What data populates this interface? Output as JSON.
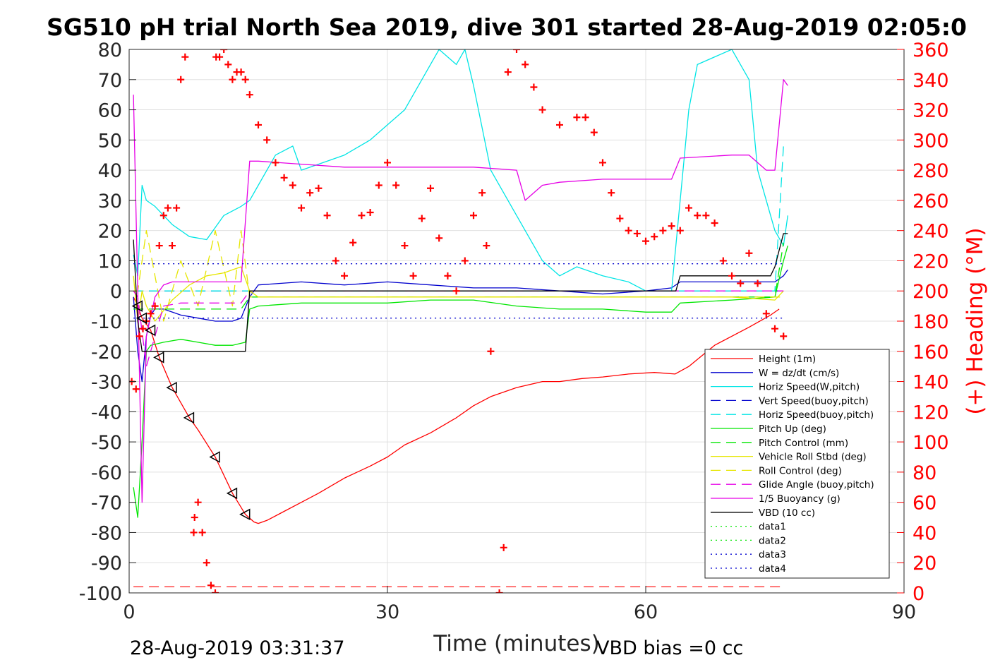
{
  "chart_data": {
    "type": "line",
    "title": "SG510 pH trial North Sea 2019, dive 301 started 28-Aug-2019 02:05:0",
    "xlabel": "Time (minutes)",
    "ylabel": "",
    "y2label": "(+) Heading (°M)",
    "xlim": [
      0,
      90
    ],
    "ylim": [
      -100,
      80
    ],
    "y2lim": [
      0,
      360
    ],
    "x_ticks": [
      "0",
      "30",
      "60",
      "90"
    ],
    "y_ticks": [
      "80",
      "70",
      "60",
      "50",
      "40",
      "30",
      "20",
      "10",
      "0",
      "-10",
      "-20",
      "-30",
      "-40",
      "-50",
      "-60",
      "-70",
      "-80",
      "-90",
      "-100"
    ],
    "y2_ticks": [
      "360",
      "340",
      "320",
      "300",
      "280",
      "260",
      "240",
      "220",
      "200",
      "180",
      "160",
      "140",
      "120",
      "100",
      "80",
      "60",
      "40",
      "20",
      "0"
    ],
    "grid": true,
    "legend_position": "lower-right",
    "footer_left": "28-Aug-2019 03:31:37",
    "footer_right": "VBD bias =0 cc",
    "series": [
      {
        "name": "Height (1m)",
        "color": "#ff0000",
        "style": "solid",
        "x": [
          0.5,
          1.0,
          1.5,
          2.5,
          3.5,
          5,
          7,
          8,
          10,
          12,
          13.5,
          14.5,
          15,
          16,
          18,
          20,
          22,
          25,
          28,
          30,
          32,
          35,
          38,
          40,
          42,
          45,
          48,
          50,
          52.6,
          55,
          58,
          61,
          63.4,
          65,
          68,
          72,
          74.5,
          75.5
        ],
        "y": [
          -2,
          -5,
          -9,
          -13,
          -22,
          -32,
          -42,
          -46,
          -55,
          -67,
          -74,
          -76.5,
          -77,
          -76,
          -73,
          -70,
          -67,
          -62,
          -58,
          -55,
          -51,
          -47,
          -42,
          -38,
          -35,
          -32,
          -30,
          -30,
          -29,
          -28.5,
          -27.5,
          -27,
          -27.5,
          -25,
          -18,
          -12,
          -8,
          -6
        ]
      },
      {
        "name": "W = dz/dt (cm/s)",
        "color": "#0000cd",
        "style": "solid",
        "x": [
          0.5,
          1,
          1.5,
          2,
          2.5,
          3,
          4,
          6,
          8,
          10,
          12,
          13,
          14,
          15,
          20,
          25,
          30,
          35,
          40,
          45,
          50,
          55,
          60,
          63,
          64,
          70,
          75,
          76,
          76.5
        ],
        "y": [
          -2,
          -20,
          -30,
          -15,
          -8,
          -6,
          -6,
          -8,
          -9,
          -10,
          -10,
          -9,
          -2,
          2,
          3,
          2,
          3,
          2,
          1,
          1,
          0,
          -1,
          0,
          1,
          3,
          3,
          3,
          5,
          7
        ]
      },
      {
        "name": "Horiz Speed(W,pitch)",
        "color": "#00e5e5",
        "style": "solid",
        "x": [
          0.5,
          1,
          1.5,
          2,
          3,
          5,
          7,
          9,
          11,
          13,
          14,
          15,
          17,
          19,
          20,
          22,
          25,
          28,
          30,
          32,
          34,
          36,
          38,
          39,
          40,
          42,
          45,
          48,
          50,
          52,
          55,
          58,
          60,
          63,
          64,
          65,
          66,
          70,
          72,
          73,
          75,
          76,
          76.5
        ],
        "y": [
          12,
          5,
          35,
          30,
          28,
          22,
          18,
          17,
          25,
          28,
          30,
          35,
          45,
          48,
          40,
          42,
          45,
          50,
          55,
          60,
          70,
          80,
          75,
          80,
          68,
          40,
          25,
          10,
          5,
          8,
          5,
          3,
          0,
          0,
          30,
          60,
          75,
          80,
          70,
          40,
          20,
          15,
          25
        ]
      },
      {
        "name": "Vert Speed(buoy,pitch)",
        "color": "#0000cd",
        "style": "dashed",
        "x": [
          0.5,
          1,
          2,
          5,
          10,
          13,
          14,
          20,
          30,
          40,
          50,
          60,
          70,
          76
        ],
        "y": [
          0,
          0,
          0,
          0,
          0,
          0,
          0,
          0,
          0,
          0,
          0,
          0,
          0,
          0
        ]
      },
      {
        "name": "Horiz Speed(buoy,pitch)",
        "color": "#00e5e5",
        "style": "dashed",
        "x": [
          0.5,
          1,
          2,
          5,
          10,
          13,
          14,
          20,
          30,
          40,
          50,
          60,
          70,
          75,
          76
        ],
        "y": [
          0,
          0,
          0,
          0,
          0,
          0,
          0,
          0,
          0,
          0,
          0,
          0,
          0,
          0,
          48
        ]
      },
      {
        "name": "Pitch Up (deg)",
        "color": "#00e600",
        "style": "solid",
        "x": [
          0.5,
          1,
          1.5,
          2,
          2.5,
          4,
          6,
          8,
          10,
          12,
          13.5,
          14,
          15,
          20,
          25,
          30,
          35,
          40,
          45,
          50,
          55,
          60,
          63,
          64,
          70,
          75,
          76,
          76.5
        ],
        "y": [
          -65,
          -75,
          -50,
          -20,
          -18,
          -17,
          -16,
          -17,
          -18,
          -18,
          -17,
          -6,
          -5,
          -4,
          -4,
          -4,
          -3,
          -3,
          -5,
          -6,
          -6,
          -7,
          -7,
          -4,
          -3,
          -2,
          10,
          15
        ]
      },
      {
        "name": "Pitch Control (mm)",
        "color": "#00e600",
        "style": "dashed",
        "x": [
          0.5,
          1,
          2,
          5,
          10,
          13,
          14,
          20,
          30,
          40,
          50,
          60,
          70,
          75,
          76
        ],
        "y": [
          -6,
          -6,
          -6,
          -6,
          -6,
          -6,
          -2,
          -2,
          -2,
          -2,
          -2,
          -2,
          -2,
          -2,
          16
        ]
      },
      {
        "name": "Vehicle Roll Stbd (deg)",
        "color": "#e6e600",
        "style": "solid",
        "x": [
          0.5,
          1,
          1.5,
          2,
          3,
          5,
          7,
          9,
          11,
          12,
          13,
          14,
          15,
          20,
          30,
          40,
          50,
          60,
          70,
          75,
          76
        ],
        "y": [
          5,
          -10,
          0,
          -5,
          -10,
          -3,
          2,
          5,
          6,
          7,
          8,
          0,
          -2,
          -2,
          -2,
          -2,
          -2,
          -2,
          -2,
          -3,
          0
        ]
      },
      {
        "name": "Roll Control (deg)",
        "color": "#e6e600",
        "style": "dashed",
        "x": [
          0.5,
          1,
          2,
          4,
          6,
          8,
          10,
          12,
          13,
          14,
          20,
          30,
          40,
          50,
          60,
          70,
          76
        ],
        "y": [
          0,
          0,
          20,
          -10,
          10,
          -5,
          20,
          -5,
          20,
          -2,
          -2,
          -2,
          -2,
          -2,
          -2,
          -2,
          -2
        ]
      },
      {
        "name": "Glide Angle (buoy,pitch)",
        "color": "#e600e6",
        "style": "dashed",
        "x": [
          0.5,
          1,
          2,
          4,
          6,
          10,
          13,
          14,
          20,
          30,
          40,
          50,
          60,
          70,
          76
        ],
        "y": [
          0,
          -2,
          -25,
          -5,
          -4,
          -4,
          -4,
          0,
          0,
          0,
          0,
          0,
          0,
          0,
          0
        ]
      },
      {
        "name": "1/5 Buoyancy (g)",
        "color": "#e600e6",
        "style": "solid",
        "x": [
          0.5,
          1,
          1.5,
          2,
          3,
          4,
          5,
          6,
          8,
          10,
          12,
          13,
          14,
          15,
          20,
          25,
          30,
          35,
          40,
          45,
          46,
          48,
          50,
          55,
          60,
          63,
          64,
          70,
          72,
          74,
          75,
          76,
          76.5
        ],
        "y": [
          65,
          0,
          -70,
          -15,
          -2,
          2,
          3,
          3,
          3,
          3,
          3,
          3,
          43,
          43,
          42,
          41,
          41,
          41,
          41,
          40,
          30,
          35,
          36,
          37,
          37,
          37,
          44,
          45,
          45,
          40,
          40,
          70,
          68
        ]
      },
      {
        "name": "VBD (10 cc)",
        "color": "#000000",
        "style": "solid",
        "x": [
          0.5,
          1,
          1.5,
          2,
          5,
          10,
          13.5,
          14,
          20,
          30,
          40,
          50,
          60,
          63.5,
          64,
          70,
          74.5,
          75,
          76,
          76.5
        ],
        "y": [
          17,
          -10,
          -20,
          -20,
          -20,
          -20,
          -20,
          0,
          0,
          0,
          0,
          0,
          0,
          0,
          5,
          5,
          5,
          8,
          19,
          19
        ]
      },
      {
        "name": "data1",
        "color": "#00e600",
        "style": "dotted",
        "x": [],
        "y": []
      },
      {
        "name": "data2",
        "color": "#00e600",
        "style": "dotted",
        "x": [],
        "y": []
      },
      {
        "name": "data3",
        "color": "#0000cd",
        "style": "dotted",
        "x": [
          0.5,
          76
        ],
        "y": [
          9,
          9
        ]
      },
      {
        "name": "data4",
        "color": "#0000cd",
        "style": "dotted",
        "x": [
          0.5,
          76
        ],
        "y": [
          -9,
          -9
        ]
      }
    ],
    "heading_series": {
      "marker": "+",
      "color": "#ff0000",
      "axis": "right",
      "x": [
        0.3,
        0.8,
        1.2,
        1.6,
        2.0,
        2.5,
        3.0,
        3.5,
        4.0,
        4.5,
        5.0,
        5.5,
        6.0,
        6.5,
        7.5,
        7.6,
        8.0,
        8.5,
        9.0,
        9.5,
        10.0,
        10.1,
        10.5,
        11.0,
        11.5,
        12.0,
        12.5,
        13.0,
        13.5,
        14.0,
        15.0,
        16.0,
        17.0,
        18.0,
        19.0,
        20.0,
        21.0,
        22.0,
        23.0,
        24.0,
        25.0,
        26.0,
        27.0,
        28.0,
        29.0,
        30.0,
        31.0,
        32.0,
        33.0,
        34.0,
        35.0,
        36.0,
        37.0,
        38.0,
        39.0,
        40.0,
        41.0,
        41.5,
        42.0,
        43.0,
        43.5,
        44.0,
        45.0,
        46.0,
        47.0,
        48.0,
        50.0,
        52.0,
        53.0,
        54.0,
        55.0,
        56.0,
        57.0,
        58.0,
        59.0,
        60.0,
        61.0,
        62.0,
        63.0,
        64.0,
        65.0,
        66.0,
        67.0,
        68.0,
        69.0,
        70.0,
        71.0,
        72.0,
        73.0,
        74.0,
        75.0,
        76.0
      ],
      "y": [
        140,
        135,
        170,
        175,
        180,
        185,
        190,
        230,
        250,
        255,
        230,
        255,
        340,
        355,
        40,
        50,
        60,
        40,
        20,
        5,
        0,
        355,
        355,
        360,
        350,
        340,
        345,
        345,
        340,
        330,
        310,
        300,
        285,
        275,
        270,
        255,
        265,
        268,
        250,
        220,
        210,
        232,
        250,
        252,
        270,
        285,
        270,
        230,
        210,
        248,
        268,
        235,
        210,
        200,
        220,
        250,
        265,
        230,
        160,
        0,
        30,
        345,
        360,
        350,
        335,
        320,
        310,
        315,
        315,
        305,
        285,
        265,
        248,
        240,
        238,
        233,
        236,
        240,
        243,
        240,
        255,
        250,
        250,
        245,
        220,
        210,
        205,
        225,
        205,
        185,
        175,
        170
      ]
    }
  }
}
